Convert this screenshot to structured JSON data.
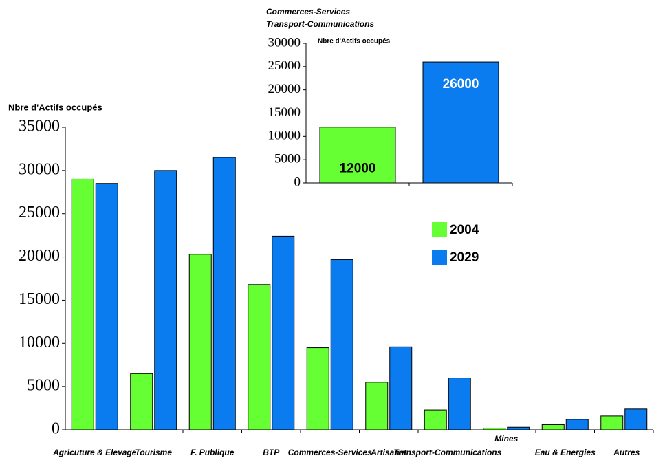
{
  "chart_data": [
    {
      "type": "bar",
      "y_label": "Nbre d'Actifs occupés",
      "categories": [
        "Agricuture & Elevage",
        "Tourisme",
        "F. Publique",
        "BTP",
        "Commerces-Services",
        "Artisanat",
        "Transport-Communications",
        "Mines",
        "Eau & Energies",
        "Autres"
      ],
      "series": [
        {
          "name": "2004",
          "color": "#66ff33",
          "values": [
            29000,
            6500,
            20300,
            16800,
            9500,
            5500,
            2300,
            200,
            600,
            1600
          ]
        },
        {
          "name": "2029",
          "color": "#0a7cf0",
          "values": [
            28500,
            30000,
            31500,
            22400,
            19700,
            9600,
            6000,
            300,
            1200,
            2400
          ]
        }
      ],
      "ylim": [
        0,
        35000
      ],
      "yticks": [
        0,
        5000,
        10000,
        15000,
        20000,
        25000,
        30000,
        35000
      ],
      "legend": "center-right"
    },
    {
      "type": "bar",
      "title": [
        "Commerces-Services",
        "Transport-Communications"
      ],
      "y_label": "Nbre d'Actifs occupés",
      "categories": [
        null,
        null
      ],
      "values": [
        12000,
        26000
      ],
      "colors": [
        "#66ff33",
        "#0a7cf0"
      ],
      "ylim": [
        0,
        30000
      ],
      "yticks": [
        0,
        5000,
        10000,
        15000,
        20000,
        25000,
        30000
      ]
    }
  ]
}
